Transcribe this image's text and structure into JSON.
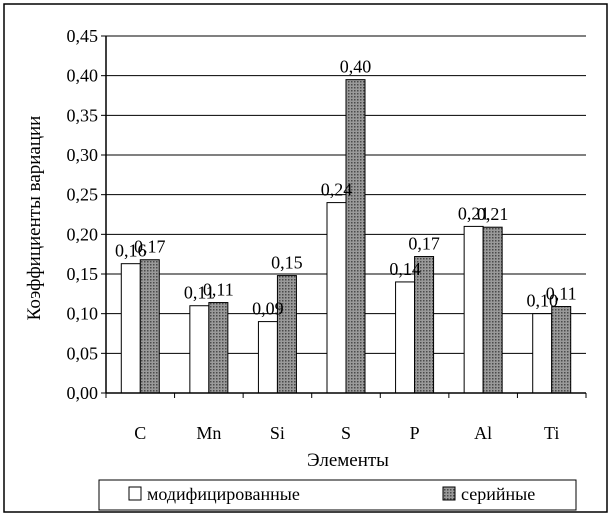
{
  "chart_data": {
    "type": "bar",
    "title": "",
    "xlabel": "Элементы",
    "ylabel": "Коэффициенты вариации",
    "categories": [
      "C",
      "Mn",
      "Si",
      "S",
      "P",
      "Al",
      "Ti"
    ],
    "series": [
      {
        "name": "модифицированные",
        "values": [
          0.163,
          0.11,
          0.09,
          0.24,
          0.14,
          0.21,
          0.1
        ],
        "labels": [
          "0,16",
          "0,11",
          "0,09",
          "0,24",
          "0,14",
          "0,21",
          "0,10"
        ],
        "fill": "#ffffff"
      },
      {
        "name": "серийные",
        "values": [
          0.168,
          0.114,
          0.148,
          0.395,
          0.172,
          0.209,
          0.109
        ],
        "labels": [
          "0,17",
          "0,11",
          "0,15",
          "0,40",
          "0,17",
          "0,21",
          "0,11"
        ],
        "fill": "#9a9a9a"
      }
    ],
    "ylim": [
      0,
      0.45
    ],
    "yticks": [
      "0,00",
      "0,05",
      "0,10",
      "0,15",
      "0,20",
      "0,25",
      "0,30",
      "0,35",
      "0,40",
      "0,45"
    ],
    "ytick_values": [
      0,
      0.05,
      0.1,
      0.15,
      0.2,
      0.25,
      0.3,
      0.35,
      0.4,
      0.45
    ],
    "grid": true,
    "legend_position": "bottom"
  }
}
